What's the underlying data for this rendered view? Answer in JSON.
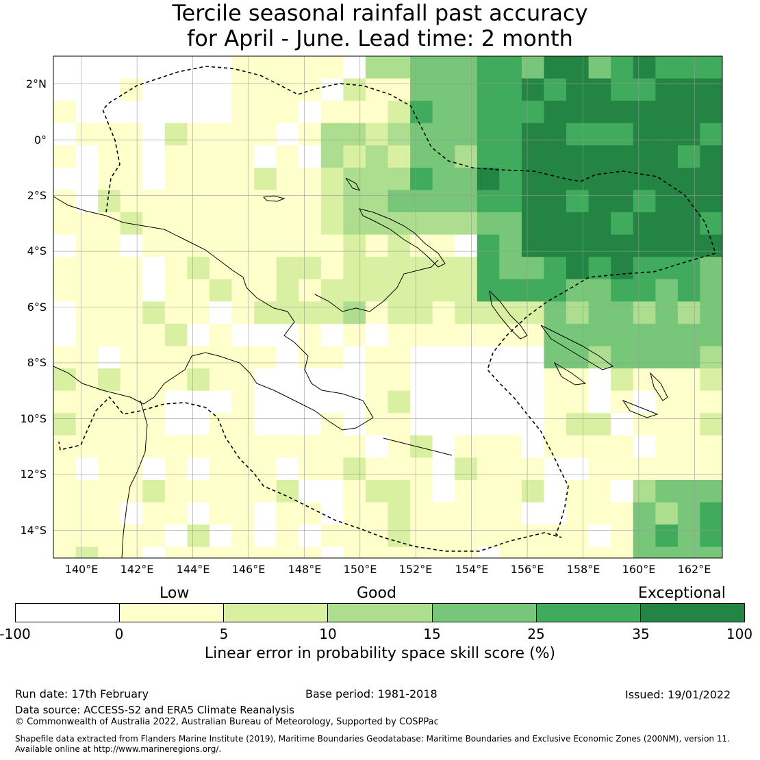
{
  "title": {
    "line1": "Tercile seasonal rainfall past accuracy",
    "line2": "for April - June. Lead time: 2 month"
  },
  "map": {
    "lon_range": [
      139,
      163
    ],
    "lat_range": [
      -15,
      3
    ],
    "lat_labels": [
      "2°N",
      "0°",
      "2°S",
      "4°S",
      "6°S",
      "8°S",
      "10°S",
      "12°S",
      "14°S"
    ],
    "lon_labels": [
      "140°E",
      "142°E",
      "144°E",
      "146°E",
      "148°E",
      "150°E",
      "152°E",
      "154°E",
      "156°E",
      "158°E",
      "160°E",
      "162°E"
    ]
  },
  "categories": {
    "low": "Low",
    "good": "Good",
    "exceptional": "Exceptional"
  },
  "colorbar": {
    "colors": [
      "#ffffff",
      "#ffffcc",
      "#d9f0a3",
      "#addd8e",
      "#78c679",
      "#41ab5d",
      "#238443"
    ],
    "ticks": [
      "-100",
      "0",
      "5",
      "10",
      "15",
      "25",
      "35",
      "100"
    ],
    "label": "Linear error in probability space skill score (%)"
  },
  "footer": {
    "run_date": "Run date: 17th February",
    "base_period": "Base period: 1981-2018",
    "issued": "Issued: 19/01/2022",
    "data_source": "Data source: ACCESS-S2 and ERA5 Climate Reanalysis",
    "copyright": "© Commonwealth of Australia 2022, Australian Bureau of Meteorology, Supported by COSPPac",
    "shapefile_line1": "Shapefile data extracted from Flanders Marine Institute (2019), Maritime Boundaries Geodatabase: Maritime Boundaries and Exclusive Economic Zones (200NM), version 11.",
    "shapefile_line2": "Available online at http://www.marineregions.org/."
  }
}
